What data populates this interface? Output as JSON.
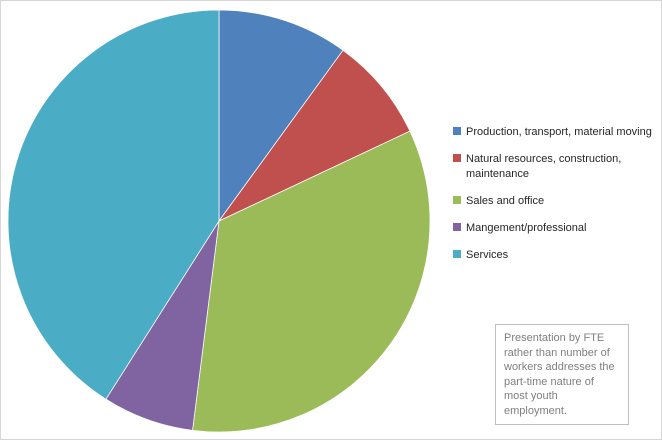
{
  "chart_data": {
    "type": "pie",
    "title": "",
    "categories": [
      "Production, transport, material moving",
      "Natural resources, construction, maintenance",
      "Sales and office",
      "Mangement/professional",
      "Services"
    ],
    "values": [
      10,
      8,
      34,
      7,
      41
    ],
    "colors": [
      "#4f81bd",
      "#c0504d",
      "#9bbb59",
      "#8064a2",
      "#4bacc6"
    ],
    "legend_position": "right",
    "start_angle_deg": 0,
    "direction": "clockwise"
  },
  "note": {
    "text": "Presentation by FTE rather than number of workers addresses the part-time nature of most youth employment."
  }
}
